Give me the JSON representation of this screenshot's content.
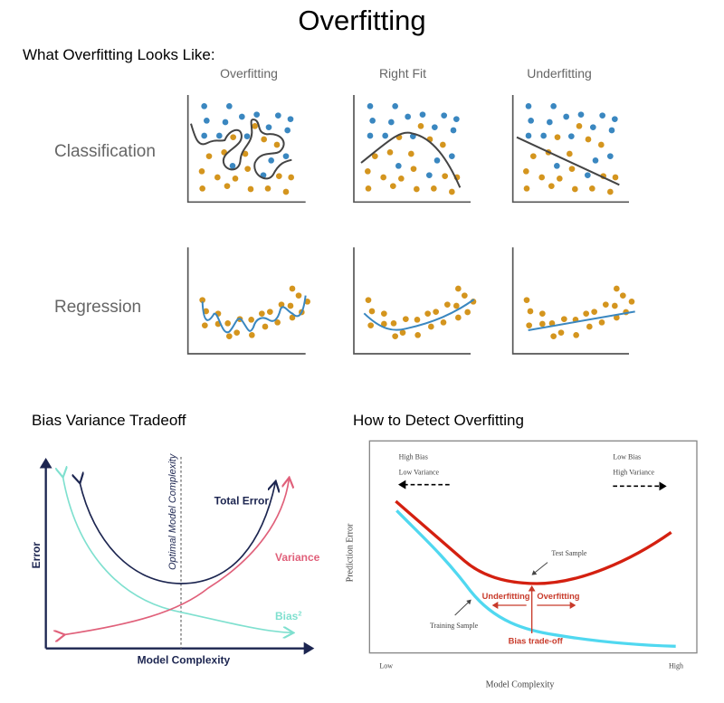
{
  "title": "Overfitting",
  "section_looks_like": {
    "heading": "What Overfitting Looks Like:",
    "columns": [
      "Overfitting",
      "Right Fit",
      "Underfitting"
    ],
    "rows": [
      "Classification",
      "Regression"
    ]
  },
  "bias_variance": {
    "heading": "Bias Variance Tradeoff",
    "y_label": "Error",
    "x_label": "Model Complexity",
    "optimal_label": "Optimal Model Complexity",
    "total_error": "Total Error",
    "variance": "Variance",
    "bias": "Bias",
    "bias_sup": "2"
  },
  "detect": {
    "heading": "How to Detect Overfitting",
    "high_bias": "High Bias",
    "low_variance": "Low Variance",
    "low_bias": "Low Bias",
    "high_variance": "High Variance",
    "test_sample": "Test Sample",
    "training_sample": "Training Sample",
    "underfitting": "Underfitting",
    "overfitting": "Overfitting",
    "bias_tradeoff": "Bias trade-off",
    "x_low": "Low",
    "x_high": "High",
    "x_label": "Model Complexity",
    "y_label": "Prediction Error"
  },
  "colors": {
    "blue_points": "#3a87c0",
    "orange_points": "#d4951e",
    "total_error": "#1c2550",
    "variance": "#e0607a",
    "bias": "#7fe0cf",
    "test_curve": "#d42010",
    "train_curve": "#50d8f0"
  }
}
